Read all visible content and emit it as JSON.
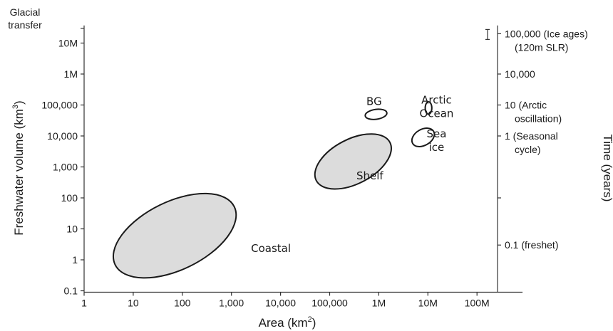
{
  "chart_data": {
    "type": "scatter",
    "xlabel": "Area (km",
    "xlabel_sup": "2",
    "xlabel_end": ")",
    "ylabel": "Freshwater volume (km",
    "ylabel_sup": "3",
    "ylabel_end": ")",
    "y_top_label_line1": "Glacial",
    "y_top_label_line2": "transfer",
    "right_axis_title": "Time (years)",
    "x_scale": "log",
    "y_scale": "log",
    "xlim": [
      1,
      1000000000
    ],
    "ylim": [
      0.1,
      30000000
    ],
    "x_ticks": [
      {
        "value": 1,
        "label": "1"
      },
      {
        "value": 10,
        "label": "10"
      },
      {
        "value": 100,
        "label": "100"
      },
      {
        "value": 1000,
        "label": "1,000"
      },
      {
        "value": 10000,
        "label": "10,000"
      },
      {
        "value": 100000,
        "label": "100,000"
      },
      {
        "value": 1000000,
        "label": "1M"
      },
      {
        "value": 10000000,
        "label": "10M"
      },
      {
        "value": 100000000,
        "label": "100M"
      }
    ],
    "y_ticks": [
      {
        "value": 0.1,
        "label": "0.1"
      },
      {
        "value": 1,
        "label": "1"
      },
      {
        "value": 10,
        "label": "10"
      },
      {
        "value": 100,
        "label": "100"
      },
      {
        "value": 1000,
        "label": "1,000"
      },
      {
        "value": 10000,
        "label": "10,000"
      },
      {
        "value": 100000,
        "label": "100,000"
      },
      {
        "value": 1000000,
        "label": "1M"
      },
      {
        "value": 10000000,
        "label": "10M"
      }
    ],
    "right_ticks": [
      {
        "y_equiv": 20000000,
        "line1": "100,000 (Ice ages)",
        "line2": "(120m SLR)"
      },
      {
        "y_equiv": 1000000,
        "line1": "10,000",
        "line2": ""
      },
      {
        "y_equiv": 100000,
        "line1": "10  (Arctic",
        "line2": "oscillation)"
      },
      {
        "y_equiv": 10000,
        "line1": "1  (Seasonal",
        "line2": "cycle)"
      },
      {
        "y_equiv": 100,
        "line1": "",
        "line2": ""
      },
      {
        "y_equiv": 3,
        "line1": "0.1 (freshet)",
        "line2": ""
      }
    ],
    "regions": [
      {
        "name": "Coastal",
        "x_center": 70,
        "y_center": 6,
        "x_from": 5,
        "x_to": 2500,
        "tilt_deg": -26.0,
        "minor_decades": 1.1,
        "label_x": 2500,
        "label_y": 1.8,
        "shaded": true
      },
      {
        "name": "Shelf",
        "x_center": 300000,
        "y_center": 1500,
        "x_from": 45000,
        "x_to": 2200000,
        "tilt_deg": -27.5,
        "minor_decades": 0.72,
        "label_x": 350000,
        "label_y": 400,
        "shaded": true
      },
      {
        "name": "BG",
        "x_center": 880000,
        "y_center": 50000,
        "x_from": 520000,
        "x_to": 1450000,
        "tilt_deg": -8.0,
        "minor_decades": 0.16,
        "label_x": 560000,
        "label_y": 100000,
        "shaded": false
      },
      {
        "name": "Arctic\nOcean",
        "x_center": 10300000,
        "y_center": 80000,
        "x_from": 8800000,
        "x_to": 12000000,
        "tilt_deg": 0,
        "minor_decades": 0.2,
        "label_x": 15000000,
        "label_y": 110000,
        "shaded": false
      },
      {
        "name": "Sea\nice",
        "x_center": 8000000,
        "y_center": 9000,
        "x_from": 4500000,
        "x_to": 14000000,
        "tilt_deg": -30.0,
        "minor_decades": 0.26,
        "label_x": 15000000,
        "label_y": 9000,
        "shaded": false
      }
    ]
  }
}
